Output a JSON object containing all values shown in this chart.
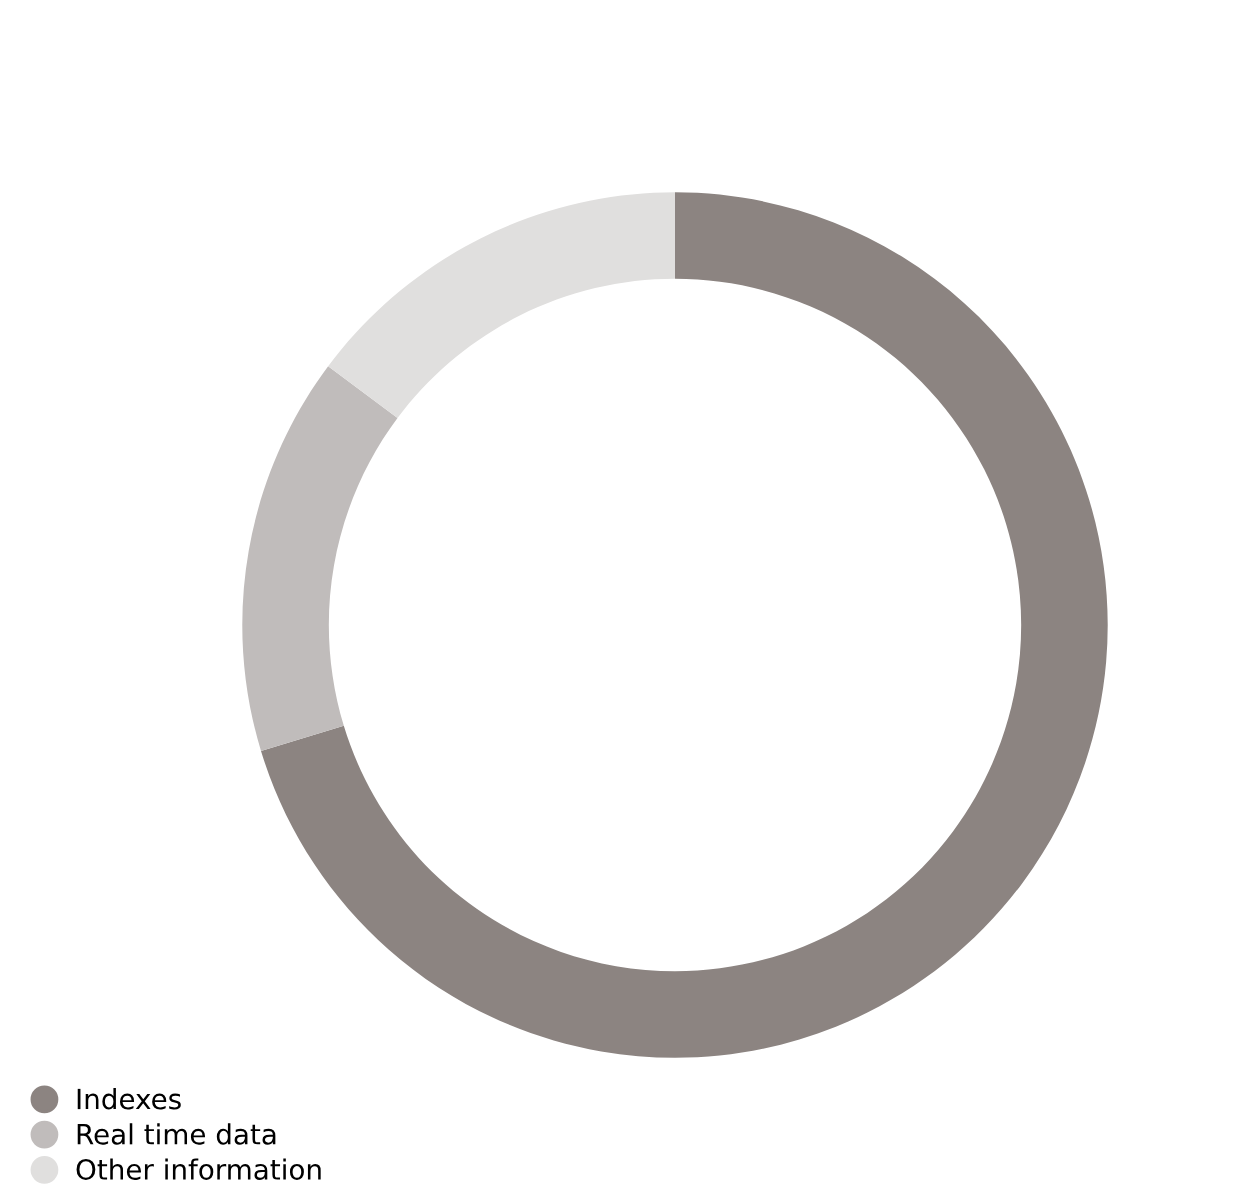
{
  "chart_data": {
    "type": "donut",
    "categories": [
      "Indexes",
      "Real time data",
      "Other information"
    ],
    "values": [
      70.3,
      14.9,
      14.8
    ],
    "colors": [
      "#8c8481",
      "#c0bcbb",
      "#e0dfde"
    ],
    "legend": "bottom left"
  }
}
